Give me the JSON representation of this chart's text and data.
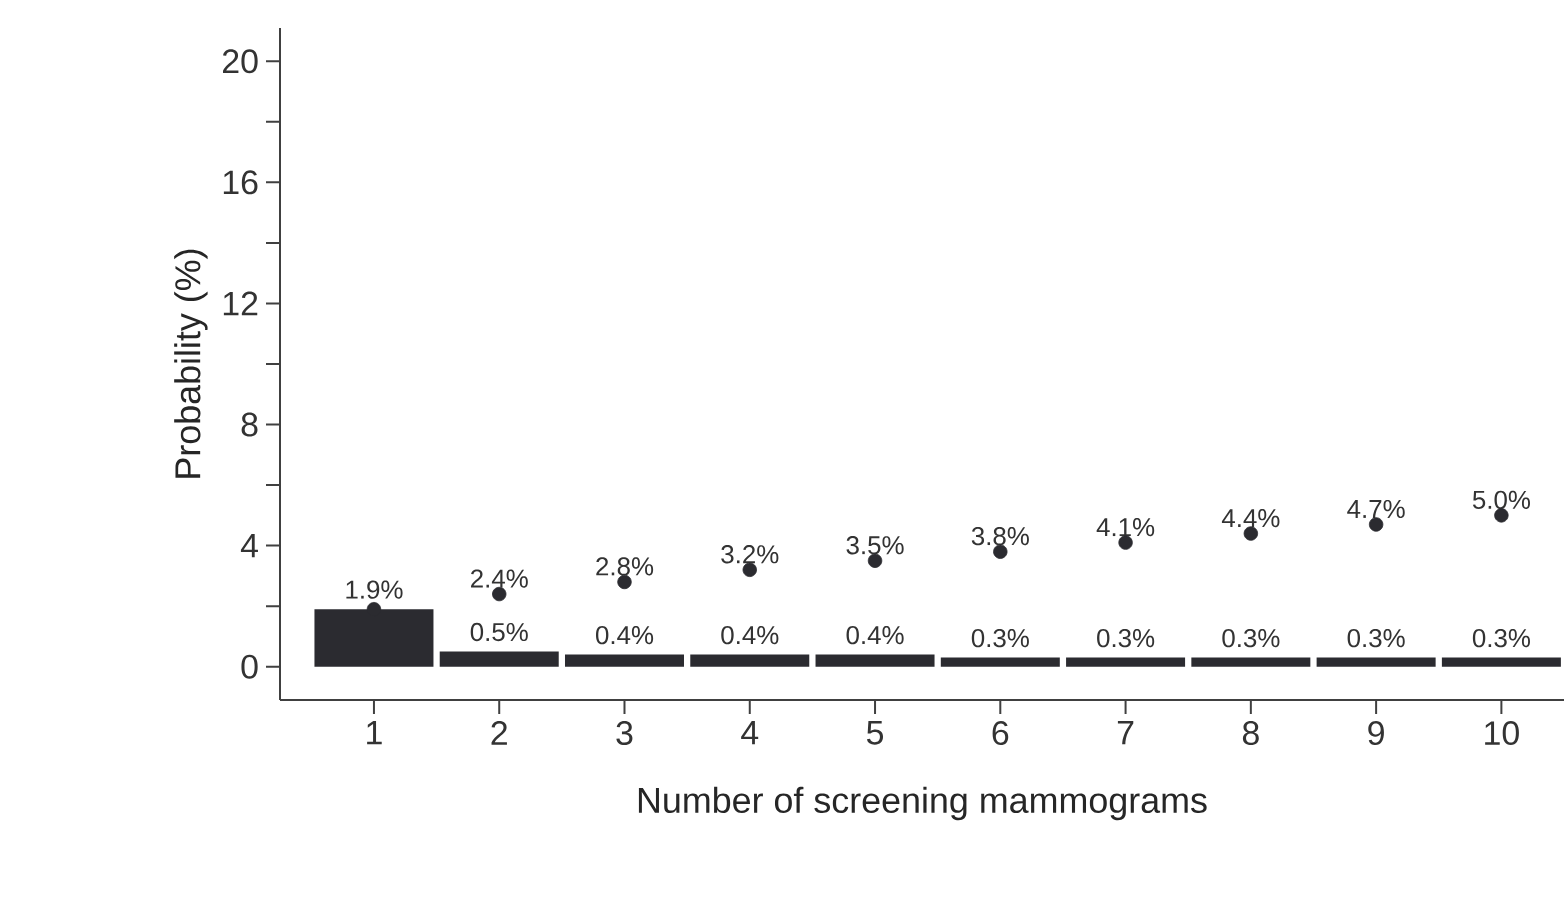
{
  "chart_data": {
    "type": "bar",
    "xlabel": "Number of screening mammograms",
    "ylabel": "Probability (%)",
    "categories": [
      "1",
      "2",
      "3",
      "4",
      "5",
      "6",
      "7",
      "8",
      "9",
      "10"
    ],
    "series": [
      {
        "color": "#2b2b30",
        "values": [
          1.9,
          0.5,
          0.4,
          0.4,
          0.4,
          0.3,
          0.3,
          0.3,
          0.3,
          0.3
        ],
        "value_labels": [
          "1.9%",
          "0.5%",
          "0.4%",
          "0.4%",
          "0.4%",
          "0.3%",
          "0.3%",
          "0.3%",
          "0.3%",
          "0.3%"
        ]
      },
      {
        "type": "scatter",
        "color": "#2b2b30",
        "marker": "circle",
        "x": [
          "1",
          "2",
          "3",
          "4",
          "5",
          "6",
          "7",
          "8",
          "9",
          "10"
        ],
        "values": [
          1.9,
          2.4,
          2.8,
          3.2,
          3.5,
          3.8,
          4.1,
          4.4,
          4.7,
          5.0
        ],
        "value_labels": [
          null,
          "2.4%",
          "2.8%",
          "3.2%",
          "3.5%",
          "3.8%",
          "4.1%",
          "4.4%",
          "4.7%",
          "5.0%"
        ]
      }
    ],
    "ylim": [
      -1.1,
      21.1
    ],
    "yticks": [
      0,
      {
        "value": 2,
        "label": null
      },
      4,
      {
        "value": 6,
        "label": null
      },
      8,
      {
        "value": 10,
        "label": null
      },
      12,
      {
        "value": 14,
        "label": null
      },
      16,
      {
        "value": 18,
        "label": null
      },
      20
    ],
    "grid": false
  }
}
